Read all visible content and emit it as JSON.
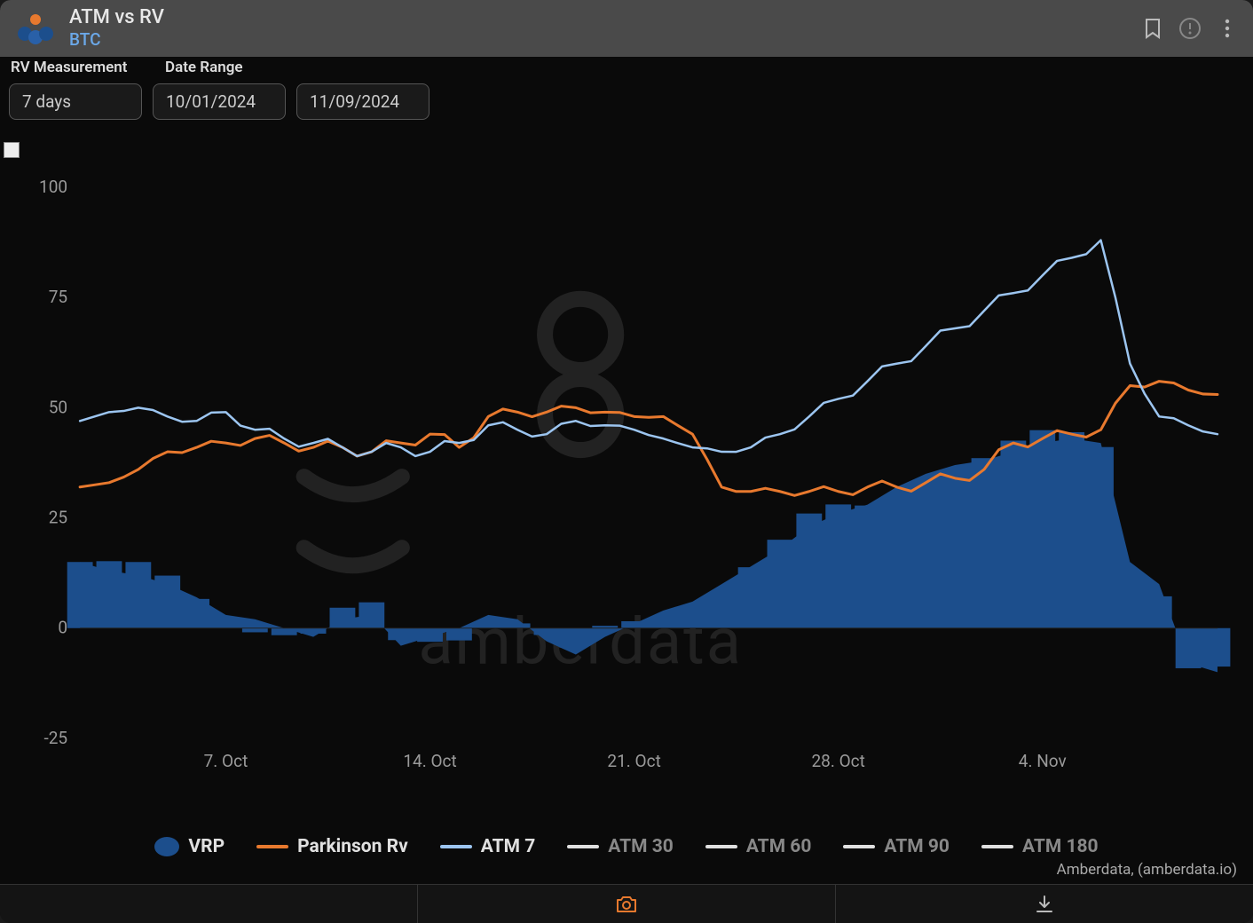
{
  "header": {
    "title": "ATM vs RV",
    "subtitle": "BTC"
  },
  "controls": {
    "rv_label": "RV Measurement",
    "date_label": "Date Range",
    "rv_value": "7 days",
    "date_from": "10/01/2024",
    "date_to": "11/09/2024"
  },
  "chart": {
    "type": "line+area",
    "background_color": "#0a0a0a",
    "grid_color": "#2a2a2a",
    "axis_label_color": "#9a9a9a",
    "axis_fontsize": 19,
    "ylim": [
      -25,
      100
    ],
    "ytick_step": 25,
    "yticks": [
      -25,
      0,
      25,
      50,
      75,
      100
    ],
    "x_ticks": [
      "7. Oct",
      "14. Oct",
      "21. Oct",
      "28. Oct",
      "4. Nov"
    ],
    "x_domain_points": 40,
    "series": {
      "vrp": {
        "label": "VRP",
        "type": "area",
        "color": "#1c4e8c",
        "opacity": 1.0,
        "values": [
          15,
          13,
          12,
          10,
          7,
          3,
          2,
          0,
          -2,
          2,
          3,
          -4,
          -2,
          0,
          3,
          2,
          -3,
          -6,
          -2,
          1,
          4,
          6,
          10,
          14,
          18,
          23,
          26,
          28,
          32,
          35,
          37,
          38,
          40,
          42,
          43,
          42,
          15,
          10,
          -8,
          -10
        ]
      },
      "parkinson": {
        "label": "Parkinson Rv",
        "type": "line",
        "color": "#e8792e",
        "line_width": 3,
        "values": [
          32,
          33,
          36,
          40,
          41,
          42,
          43,
          42,
          41,
          41,
          40,
          42,
          44,
          41,
          48,
          49,
          49,
          50,
          49,
          48,
          48,
          44,
          32,
          31,
          31,
          31,
          31,
          32,
          32,
          33,
          34,
          36,
          42,
          43,
          44,
          45,
          55,
          56,
          54,
          53
        ]
      },
      "atm7": {
        "label": "ATM 7",
        "type": "line",
        "color": "#9cc5f0",
        "line_width": 2.5,
        "values": [
          47,
          49,
          50,
          48,
          47,
          49,
          45,
          43,
          42,
          41,
          40,
          41,
          40,
          42,
          46,
          45,
          44,
          47,
          46,
          45,
          43,
          41,
          40,
          41,
          44,
          48,
          52,
          56,
          60,
          64,
          68,
          72,
          76,
          80,
          84,
          88,
          60,
          48,
          46,
          44
        ]
      },
      "atm30": {
        "label": "ATM 30",
        "type": "line",
        "color": "#e0e0e0",
        "line_width": 2,
        "hidden": true
      },
      "atm60": {
        "label": "ATM 60",
        "type": "line",
        "color": "#e0e0e0",
        "line_width": 2,
        "hidden": true
      },
      "atm90": {
        "label": "ATM 90",
        "type": "line",
        "color": "#e0e0e0",
        "line_width": 2,
        "hidden": true
      },
      "atm180": {
        "label": "ATM 180",
        "type": "line",
        "color": "#e0e0e0",
        "line_width": 2,
        "hidden": true
      }
    },
    "watermark": {
      "text": "amberdata",
      "color": "#3a3a3a",
      "logo_color": "#3a3a3a"
    }
  },
  "legend": [
    {
      "key": "vrp",
      "label": "VRP",
      "swatch": "area",
      "color": "#1c4e8c",
      "active": true
    },
    {
      "key": "parkinson",
      "label": "Parkinson Rv",
      "swatch": "line",
      "color": "#e8792e",
      "active": true
    },
    {
      "key": "atm7",
      "label": "ATM 7",
      "swatch": "line",
      "color": "#9cc5f0",
      "active": true
    },
    {
      "key": "atm30",
      "label": "ATM 30",
      "swatch": "line",
      "color": "#e0e0e0",
      "active": false
    },
    {
      "key": "atm60",
      "label": "ATM 60",
      "swatch": "line",
      "color": "#e0e0e0",
      "active": false
    },
    {
      "key": "atm90",
      "label": "ATM 90",
      "swatch": "line",
      "color": "#e0e0e0",
      "active": false
    },
    {
      "key": "atm180",
      "label": "ATM 180",
      "swatch": "line",
      "color": "#e0e0e0",
      "active": false
    }
  ],
  "attribution": "Amberdata, (amberdata.io)",
  "footer_icons": {
    "camera_color": "#e8792e",
    "download_color": "#bbbbbb"
  }
}
